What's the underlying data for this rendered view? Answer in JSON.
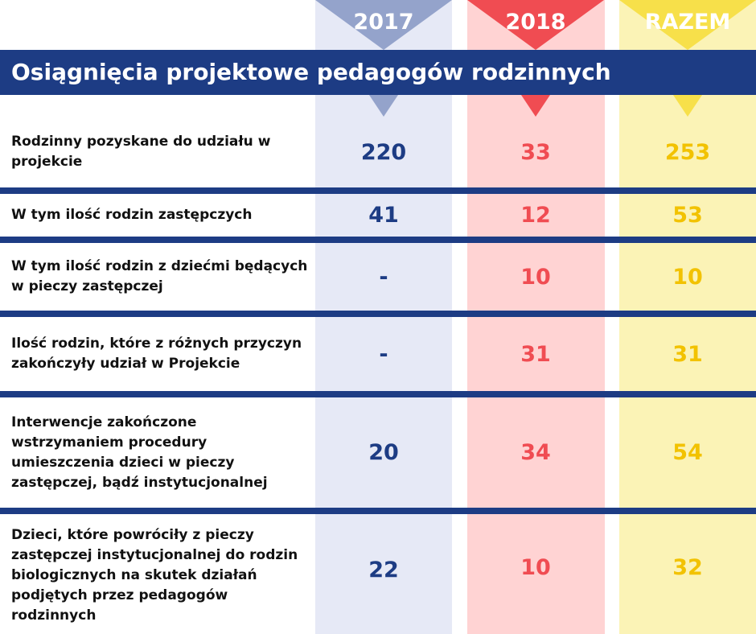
{
  "title": "Osiągnięcia projektowe pedagogów rodzinnych",
  "columns": {
    "y2017": "2017",
    "y2018": "2018",
    "razem": "RAZEM"
  },
  "colors": {
    "navy": "#1d3c84",
    "red": "#f04c52",
    "yellow": "#f2c200",
    "col_2017_bg": "#e6e9f6",
    "col_2018_bg": "#ffd3d3",
    "col_razem_bg": "#fbf3b6"
  },
  "rows": [
    {
      "label": "Rodzinny pozyskane do udziału w projekcie",
      "v2017": "220",
      "v2018": "33",
      "razem": "253"
    },
    {
      "label": "W tym ilość rodzin zastępczych",
      "v2017": "41",
      "v2018": "12",
      "razem": "53"
    },
    {
      "label": "W tym ilość rodzin z dziećmi będących w pieczy zastępczej",
      "v2017": "-",
      "v2018": "10",
      "razem": "10"
    },
    {
      "label": "Ilość rodzin, które z różnych przyczyn zakończyły udział w Projekcie",
      "v2017": "-",
      "v2018": "31",
      "razem": "31"
    },
    {
      "label": "Interwencje zakończone wstrzymaniem procedury umieszczenia dzieci w pieczy zastępczej, bądź instytucjonalnej",
      "v2017": "20",
      "v2018": "34",
      "razem": "54"
    },
    {
      "label": "Dzieci, które powróciły z pieczy zastępczej instytucjonalnej do rodzin biologicznych na skutek działań podjętych przez pedagogów rodzinnych",
      "v2017": "22",
      "v2018": "10",
      "razem": "32"
    }
  ]
}
